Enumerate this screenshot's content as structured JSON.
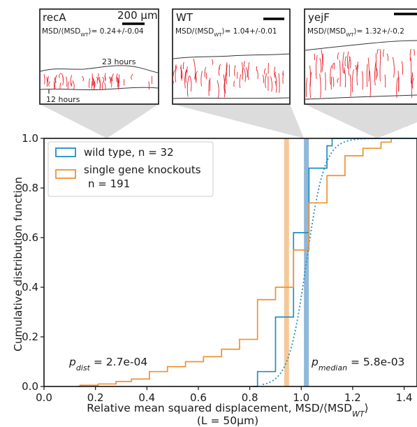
{
  "colors": {
    "wild_type": "#1f8fc3",
    "knockouts": "#f0922f",
    "wt_median_band": "#90b8db",
    "ko_median_band": "#f6c999",
    "dotted_fit": "#1f8fc3",
    "inset_fiber": "#e8202a",
    "connector_shade": "#dcdcdc"
  },
  "insets": [
    {
      "title": "recA",
      "ratio": "MSD/⟨MSD",
      "ratio_sub": "WT",
      "ratio_value": "⟩= 0.24+/-0.04",
      "scale_bar": "200 μm",
      "label_top": "23 hours",
      "label_bottom": "12 hours"
    },
    {
      "title": "WT",
      "ratio": "MSD/⟨MSD",
      "ratio_sub": "WT",
      "ratio_value": "⟩= 1.04+/-0.01"
    },
    {
      "title": "yejF",
      "ratio": "MSD/⟨MSD",
      "ratio_sub": "WT",
      "ratio_value": "⟩= 1.32+/-0.2"
    }
  ],
  "chart_data": {
    "type": "step",
    "ylabel": "Cumulative distribution function",
    "xlabel": "Relative mean squared displacement, MSD/⟨MSD",
    "xlabel_sub": "WT",
    "xlabel_close": "⟩",
    "xlabel_line2": "(L = 50μm)",
    "xlim": [
      0.0,
      1.45
    ],
    "ylim": [
      0.0,
      1.0
    ],
    "xticks": [
      "0.0",
      "0.2",
      "0.4",
      "0.6",
      "0.8",
      "1.0",
      "1.2",
      "1.4"
    ],
    "yticks": [
      "0.0",
      "0.2",
      "0.4",
      "0.6",
      "0.8",
      "1.0"
    ],
    "series": [
      {
        "name": "wild type, n = 32",
        "color": "#1f8fc3",
        "steps": [
          [
            0.81,
            0.0
          ],
          [
            0.83,
            0.06
          ],
          [
            0.9,
            0.28
          ],
          [
            0.97,
            0.62
          ],
          [
            1.03,
            0.88
          ],
          [
            1.1,
            0.97
          ],
          [
            1.12,
            1.0
          ],
          [
            1.45,
            1.0
          ]
        ]
      },
      {
        "name": "single gene knockouts\n n = 191",
        "name_line1": "single gene knockouts",
        "name_line2": "n = 191",
        "color": "#f0922f",
        "steps": [
          [
            0.13,
            0.0
          ],
          [
            0.14,
            0.005
          ],
          [
            0.21,
            0.01
          ],
          [
            0.28,
            0.02
          ],
          [
            0.34,
            0.03
          ],
          [
            0.41,
            0.06
          ],
          [
            0.48,
            0.08
          ],
          [
            0.55,
            0.1
          ],
          [
            0.62,
            0.12
          ],
          [
            0.69,
            0.15
          ],
          [
            0.76,
            0.19
          ],
          [
            0.83,
            0.35
          ],
          [
            0.9,
            0.4
          ],
          [
            0.97,
            0.55
          ],
          [
            1.03,
            0.74
          ],
          [
            1.1,
            0.85
          ],
          [
            1.17,
            0.93
          ],
          [
            1.24,
            0.96
          ],
          [
            1.31,
            0.985
          ],
          [
            1.35,
            1.0
          ]
        ]
      }
    ],
    "fit_curve": {
      "style": "dotted",
      "center": 1.02,
      "scale": 0.035
    },
    "vertical_bands": [
      {
        "x": 1.02,
        "color": "#90b8db"
      },
      {
        "x": 0.943,
        "color": "#f6c999"
      }
    ],
    "annotations": [
      {
        "p": "p",
        "sub": "dist",
        "value": " = 2.7e-04"
      },
      {
        "p": "p",
        "sub": "median",
        "value": " = 5.8e-03"
      }
    ]
  }
}
